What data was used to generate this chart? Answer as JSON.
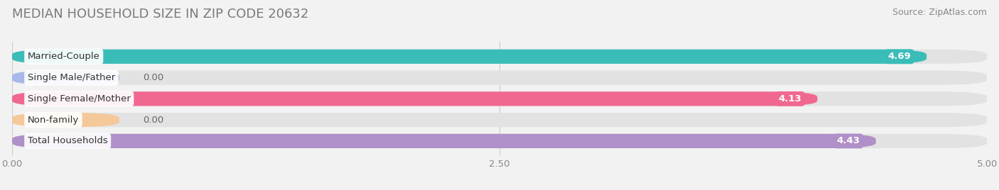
{
  "title": "MEDIAN HOUSEHOLD SIZE IN ZIP CODE 20632",
  "source": "Source: ZipAtlas.com",
  "categories": [
    "Married-Couple",
    "Single Male/Father",
    "Single Female/Mother",
    "Non-family",
    "Total Households"
  ],
  "values": [
    4.69,
    0.0,
    4.13,
    0.0,
    4.43
  ],
  "bar_colors": [
    "#3abcb9",
    "#a8b8e8",
    "#f06890",
    "#f5c89a",
    "#b090c8"
  ],
  "xlim": [
    0,
    5.0
  ],
  "xticks": [
    0.0,
    2.5,
    5.0
  ],
  "xtick_labels": [
    "0.00",
    "2.50",
    "5.00"
  ],
  "background_color": "#f2f2f2",
  "bar_bg_color": "#e2e2e2",
  "title_fontsize": 13,
  "label_fontsize": 9.5,
  "value_fontsize": 9.5,
  "source_fontsize": 9
}
